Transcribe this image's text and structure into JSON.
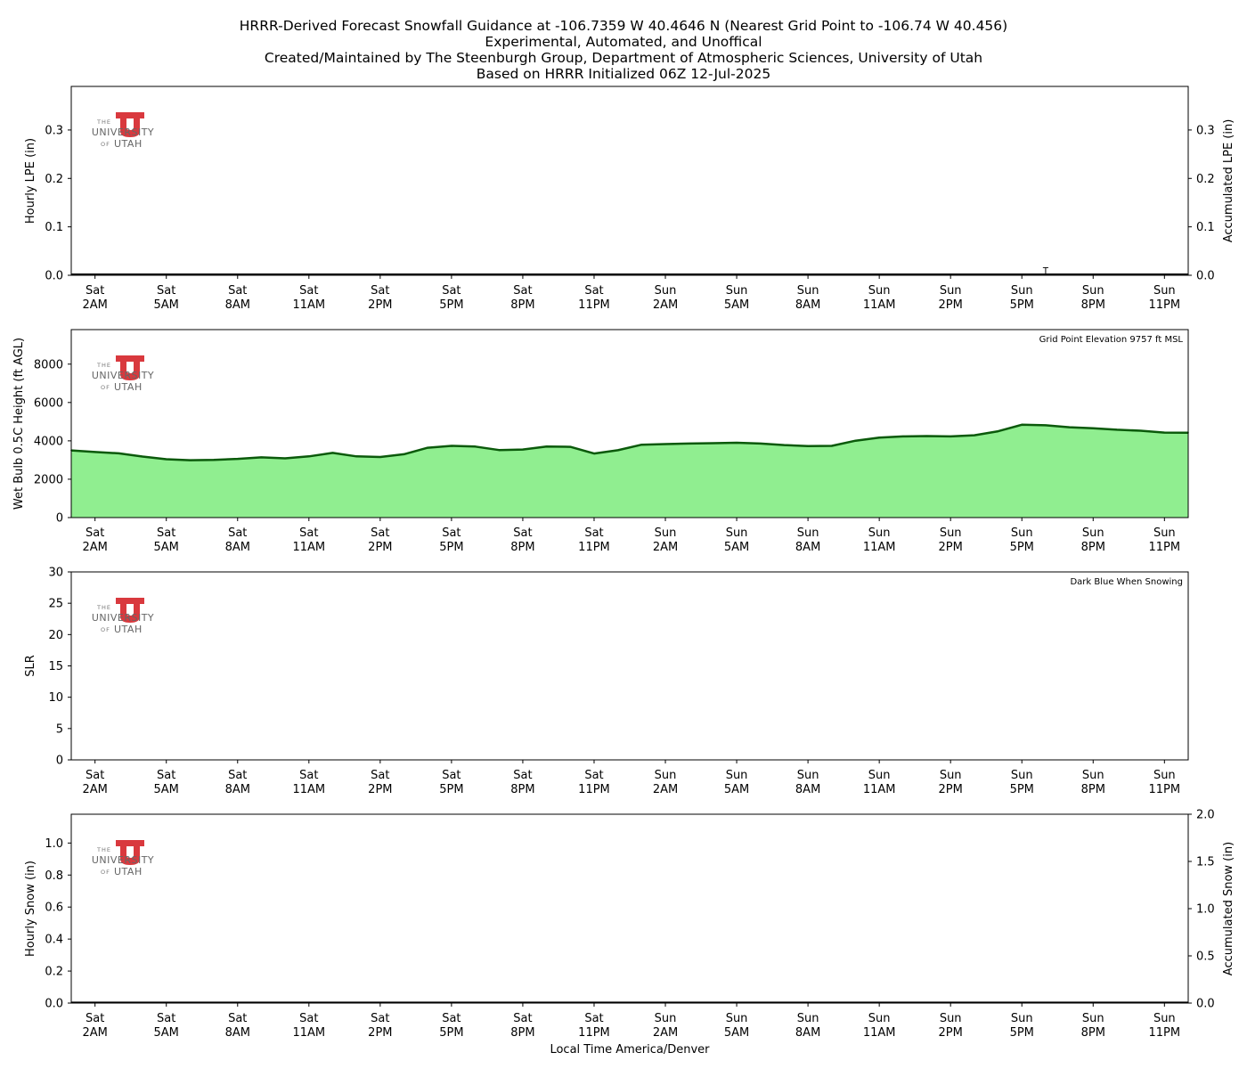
{
  "title_lines": [
    "HRRR-Derived Forecast Snowfall Guidance at -106.7359 W 40.4646 N (Nearest Grid Point to -106.74 W 40.456)",
    "Experimental, Automated, and Unoffical",
    "Created/Maintained by The Steenburgh Group, Department of Atmospheric Sciences, University of Utah",
    "Based on HRRR Initialized 06Z 12-Jul-2025"
  ],
  "logo": {
    "line1": "THE",
    "line2": "UNIVERSITY",
    "line3_prefix": "OF",
    "line3": "UTAH",
    "color": "#d9393e"
  },
  "x_axis": {
    "label": "Local Time America/Denver",
    "ticks": [
      {
        "hour": 2,
        "day": "Sat",
        "time": "2AM"
      },
      {
        "hour": 5,
        "day": "Sat",
        "time": "5AM"
      },
      {
        "hour": 8,
        "day": "Sat",
        "time": "8AM"
      },
      {
        "hour": 11,
        "day": "Sat",
        "time": "11AM"
      },
      {
        "hour": 14,
        "day": "Sat",
        "time": "2PM"
      },
      {
        "hour": 17,
        "day": "Sat",
        "time": "5PM"
      },
      {
        "hour": 20,
        "day": "Sat",
        "time": "8PM"
      },
      {
        "hour": 23,
        "day": "Sat",
        "time": "11PM"
      },
      {
        "hour": 26,
        "day": "Sun",
        "time": "2AM"
      },
      {
        "hour": 29,
        "day": "Sun",
        "time": "5AM"
      },
      {
        "hour": 32,
        "day": "Sun",
        "time": "8AM"
      },
      {
        "hour": 35,
        "day": "Sun",
        "time": "11AM"
      },
      {
        "hour": 38,
        "day": "Sun",
        "time": "2PM"
      },
      {
        "hour": 41,
        "day": "Sun",
        "time": "5PM"
      },
      {
        "hour": 44,
        "day": "Sun",
        "time": "8PM"
      },
      {
        "hour": 47,
        "day": "Sun",
        "time": "11PM"
      }
    ],
    "range_hours": [
      1,
      48
    ]
  },
  "chart_data": [
    {
      "type": "bar",
      "ylabel": "Hourly LPE (in)",
      "y2label": "Accumulated LPE (in)",
      "ylim": [
        0,
        0.39
      ],
      "yticks": [
        0.0,
        0.1,
        0.2,
        0.3
      ],
      "y2lim": [
        0,
        0.39
      ],
      "y2ticks": [
        0.0,
        0.1,
        0.2,
        0.3
      ],
      "values": [],
      "accumulated": [],
      "annotations": [
        {
          "hour": 42.0,
          "text": "T"
        }
      ],
      "grid": false
    },
    {
      "type": "area",
      "ylabel": "Wet Bulb 0.5C Height (ft AGL)",
      "ylim": [
        0,
        9800
      ],
      "yticks": [
        0,
        2000,
        4000,
        6000,
        8000
      ],
      "note": "Grid Point Elevation 9757 ft MSL",
      "fill": "#90ee90",
      "line": "#0b5a0b",
      "x": [
        1,
        2,
        3,
        4,
        5,
        6,
        7,
        8,
        9,
        10,
        11,
        12,
        13,
        14,
        15,
        16,
        17,
        18,
        19,
        20,
        21,
        22,
        23,
        24,
        25,
        26,
        27,
        28,
        29,
        30,
        31,
        32,
        33,
        34,
        35,
        36,
        37,
        38,
        39,
        40,
        41,
        42,
        43,
        44,
        45,
        46,
        47,
        48
      ],
      "values": [
        3500,
        3420,
        3350,
        3180,
        3040,
        2990,
        3010,
        3060,
        3140,
        3090,
        3190,
        3370,
        3190,
        3160,
        3300,
        3640,
        3740,
        3700,
        3520,
        3550,
        3700,
        3690,
        3340,
        3510,
        3800,
        3830,
        3860,
        3880,
        3900,
        3860,
        3780,
        3730,
        3740,
        4010,
        4170,
        4230,
        4250,
        4230,
        4290,
        4500,
        4840,
        4810,
        4710,
        4660,
        4580,
        4530,
        4430,
        4420
      ],
      "grid": false
    },
    {
      "type": "bar",
      "ylabel": "SLR",
      "ylim": [
        0,
        30
      ],
      "yticks": [
        0,
        5,
        10,
        15,
        20,
        25,
        30
      ],
      "note": "Dark Blue When Snowing",
      "values": [],
      "grid": false
    },
    {
      "type": "bar",
      "ylabel": "Hourly Snow (in)",
      "y2label": "Accumulated Snow (in)",
      "ylim": [
        0,
        1.18
      ],
      "yticks": [
        0.0,
        0.2,
        0.4,
        0.6,
        0.8,
        1.0
      ],
      "y2lim": [
        0,
        2.0
      ],
      "y2ticks": [
        0.0,
        0.5,
        1.0,
        1.5,
        2.0
      ],
      "values": [],
      "accumulated": [],
      "grid": false
    }
  ]
}
